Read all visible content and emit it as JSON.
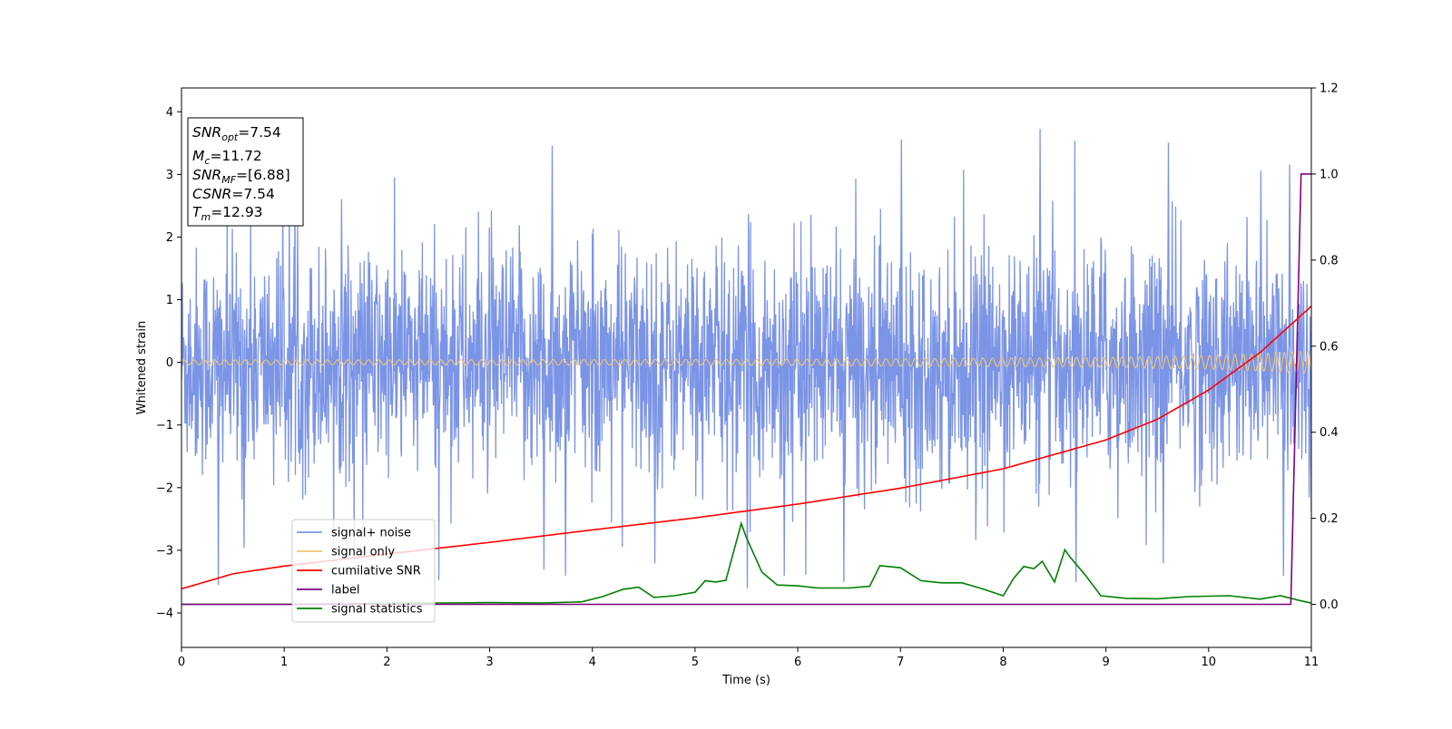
{
  "chart_data": {
    "type": "line",
    "xlabel": "Time (s)",
    "ylabel": "Whitened strain",
    "ylabel_right": "",
    "xlim": [
      0,
      11
    ],
    "ylim": [
      -4.55,
      4.38
    ],
    "ylim_right": [
      -0.1,
      1.2
    ],
    "x_ticks": [
      "0",
      "1",
      "2",
      "3",
      "4",
      "5",
      "6",
      "7",
      "8",
      "9",
      "10",
      "11"
    ],
    "y_ticks": [
      "−4",
      "−3",
      "−2",
      "−1",
      "0",
      "1",
      "2",
      "3",
      "4"
    ],
    "y_right_ticks": [
      "0.0",
      "0.2",
      "0.4",
      "0.6",
      "0.8",
      "1.0",
      "1.2"
    ],
    "grid": false,
    "legend_position": "lower left",
    "info_box": {
      "lines": [
        {
          "sym": "SNR",
          "sub": "opt",
          "value": "=7.54"
        },
        {
          "sym": "M",
          "sub": "c",
          "value": "=11.72"
        },
        {
          "sym": "SNR",
          "sub": "MF",
          "value": "=[6.88]"
        },
        {
          "sym": "CSNR",
          "sub": "",
          "value": "=7.54"
        },
        {
          "sym": "T",
          "sub": "m",
          "value": "=12.93"
        }
      ]
    },
    "series": [
      {
        "name": "signal+ noise",
        "axis": "left",
        "color": "#7b94e6",
        "description_values": {
          "mean": 0,
          "std": 1.0,
          "min": -3.7,
          "max": 3.72
        },
        "notable_peaks": [
          [
            0.35,
            -3.55
          ],
          [
            0.6,
            -2.95
          ],
          [
            1.55,
            2.6
          ],
          [
            3.52,
            -3.3
          ],
          [
            3.6,
            3.45
          ],
          [
            3.73,
            -3.4
          ],
          [
            4.6,
            -3.2
          ],
          [
            5.5,
            -3.6
          ],
          [
            5.86,
            -3.4
          ],
          [
            6.44,
            -3.5
          ],
          [
            7.0,
            3.55
          ],
          [
            8.35,
            3.72
          ],
          [
            8.7,
            -3.5
          ],
          [
            9.6,
            3.5
          ],
          [
            9.55,
            -3.2
          ],
          [
            10.5,
            3.05
          ],
          [
            10.78,
            3.15
          ],
          [
            10.72,
            -3.4
          ]
        ]
      },
      {
        "name": "signal only",
        "axis": "left",
        "color": "#f5c56b",
        "amplitude_start": 0.04,
        "amplitude_end": 0.18,
        "x": [
          0,
          2,
          4,
          6,
          8,
          9,
          10,
          10.5,
          11
        ],
        "amplitude": [
          0.04,
          0.04,
          0.045,
          0.05,
          0.07,
          0.08,
          0.11,
          0.14,
          0.18
        ]
      },
      {
        "name": "cumilative SNR",
        "axis": "right",
        "color": "#ff0000",
        "x": [
          0,
          0.5,
          1,
          2,
          3,
          4,
          5,
          6,
          7,
          8,
          9,
          9.5,
          10,
          10.5,
          11
        ],
        "y": [
          0.036,
          0.071,
          0.089,
          0.117,
          0.144,
          0.173,
          0.201,
          0.233,
          0.27,
          0.315,
          0.382,
          0.43,
          0.498,
          0.585,
          0.693
        ]
      },
      {
        "name": "label",
        "axis": "right",
        "color": "#800080",
        "x": [
          0,
          10.8,
          10.9,
          11
        ],
        "y": [
          0,
          0,
          1,
          1
        ]
      },
      {
        "name": "signal statistics",
        "axis": "right",
        "color": "#008000",
        "x": [
          0,
          1,
          2,
          3,
          3.5,
          3.9,
          4.1,
          4.3,
          4.45,
          4.6,
          4.8,
          5.0,
          5.1,
          5.2,
          5.3,
          5.45,
          5.5,
          5.65,
          5.8,
          6.0,
          6.2,
          6.5,
          6.7,
          6.8,
          7.0,
          7.2,
          7.4,
          7.6,
          7.8,
          8.0,
          8.1,
          8.2,
          8.3,
          8.38,
          8.5,
          8.6,
          8.65,
          8.8,
          8.95,
          9.2,
          9.5,
          9.8,
          10.2,
          10.5,
          10.7,
          10.9,
          11.0
        ],
        "y": [
          0.0,
          0.0,
          0.002,
          0.004,
          0.003,
          0.006,
          0.018,
          0.035,
          0.04,
          0.016,
          0.02,
          0.028,
          0.055,
          0.052,
          0.056,
          0.188,
          0.155,
          0.075,
          0.045,
          0.043,
          0.038,
          0.038,
          0.042,
          0.09,
          0.085,
          0.055,
          0.05,
          0.05,
          0.036,
          0.02,
          0.06,
          0.088,
          0.083,
          0.1,
          0.052,
          0.127,
          0.11,
          0.068,
          0.02,
          0.014,
          0.013,
          0.018,
          0.02,
          0.012,
          0.02,
          0.008,
          0.003
        ]
      }
    ]
  }
}
